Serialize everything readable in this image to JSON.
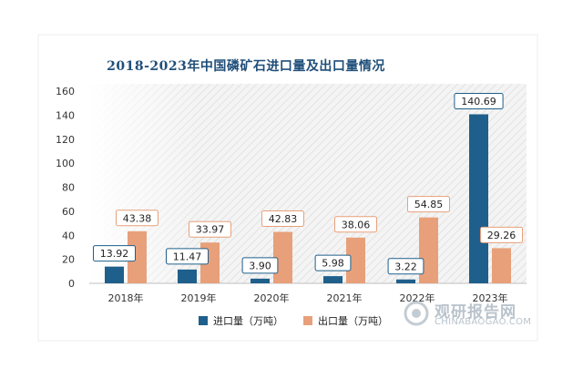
{
  "chart_data": {
    "type": "bar",
    "title": "2018-2023年中国磷矿石进口量及出口量情况",
    "categories": [
      "2018年",
      "2019年",
      "2020年",
      "2021年",
      "2022年",
      "2023年"
    ],
    "series": [
      {
        "name": "进口量（万吨）",
        "values": [
          13.92,
          11.47,
          3.9,
          5.98,
          3.22,
          140.69
        ],
        "color": "#1f5f8b"
      },
      {
        "name": "出口量（万吨）",
        "values": [
          43.38,
          33.97,
          42.83,
          38.06,
          54.85,
          29.26
        ],
        "color": "#e8a07a"
      }
    ],
    "value_labels": [
      [
        "13.92",
        "11.47",
        "3.90",
        "5.98",
        "3.22",
        "140.69"
      ],
      [
        "43.38",
        "33.97",
        "42.83",
        "38.06",
        "54.85",
        "29.26"
      ]
    ],
    "ylim": [
      0,
      160
    ],
    "yticks": [
      "0",
      "20",
      "40",
      "60",
      "80",
      "100",
      "120",
      "140",
      "160"
    ],
    "grid": false,
    "legend": "bottom"
  },
  "watermark": {
    "brand": "观研报告网",
    "url": "CHINABAOGAO.COM"
  },
  "colors": {
    "title": "#1f4e79",
    "import": "#1f5f8b",
    "export": "#e8a07a",
    "import_label_border": "#1f5f8b",
    "export_label_border": "#e8a07a"
  }
}
